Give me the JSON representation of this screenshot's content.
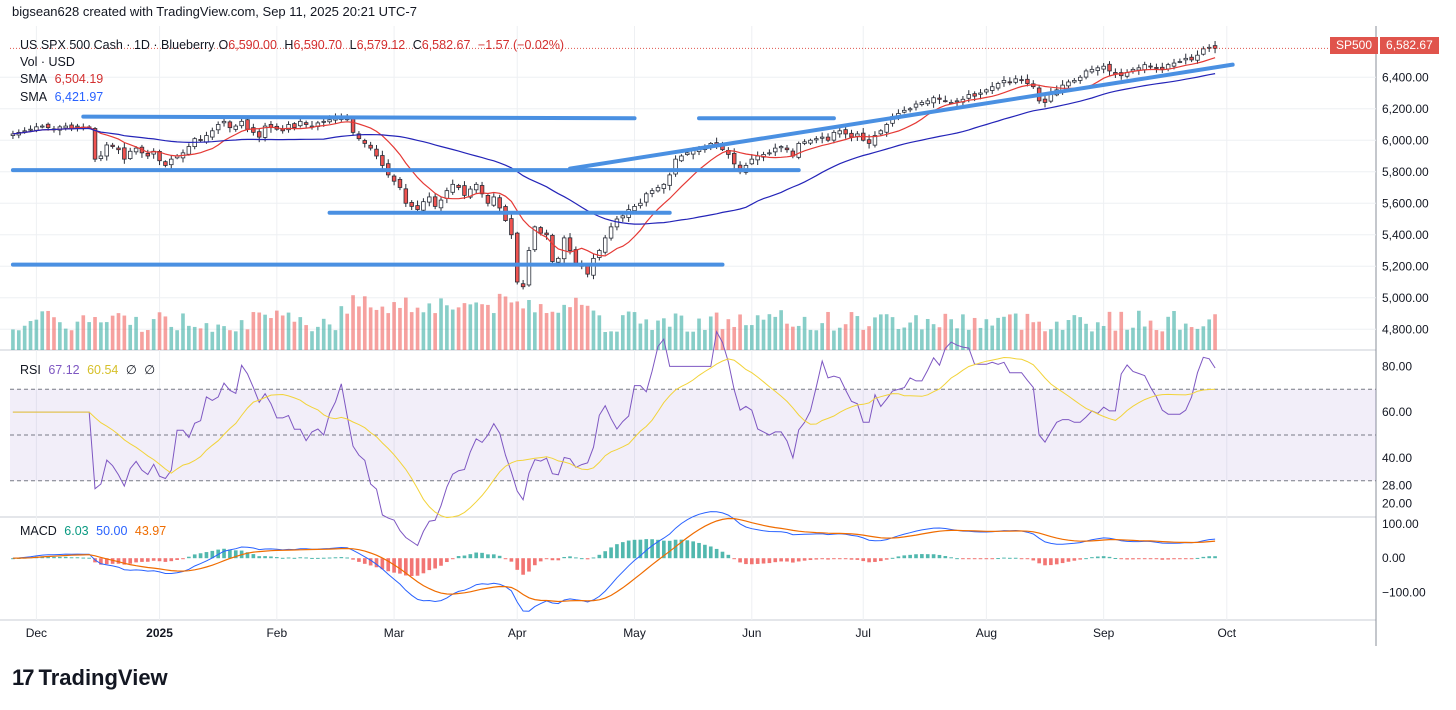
{
  "header": {
    "caption": "bigsean628 created with TradingView.com, Sep 11, 2025 20:21 UTC-7"
  },
  "symbol": {
    "name": "US SPX 500 Cash · 1D · Blueberry",
    "open_lbl": "O",
    "open": "6,590.00",
    "high_lbl": "H",
    "high": "6,590.70",
    "low_lbl": "L",
    "low": "6,579.12",
    "close_lbl": "C",
    "close": "6,582.67",
    "change": "−1.57 (−0.02%)",
    "vol_label": "Vol · USD",
    "sma1_label": "SMA",
    "sma1_value": "6,504.19",
    "sma2_label": "SMA",
    "sma2_value": "6,421.97"
  },
  "price_badge": {
    "ticker": "SP500",
    "value": "6,582.67"
  },
  "rsi": {
    "label": "RSI",
    "value": "67.12",
    "ma": "60.54",
    "extra1": "∅",
    "extra2": "∅"
  },
  "macd": {
    "label": "MACD",
    "v1": "6.03",
    "v2": "50.00",
    "v3": "43.97"
  },
  "brand": {
    "logo": "17",
    "name": "TradingView"
  },
  "colors": {
    "up": "#26a69a",
    "down": "#ef5350",
    "sma_fast": "#e53935",
    "sma_slow": "#2424b8",
    "trendline": "#4a90e2",
    "rsi": "#7e57c2",
    "rsi_ma": "#f2d33a",
    "macd": "#2962ff",
    "signal": "#ef6c00"
  },
  "chart_data": {
    "type": "candlestick",
    "main_axis": {
      "ticks": [
        "6,400.00",
        "6,200.00",
        "6,000.00",
        "5,800.00",
        "5,600.00",
        "5,400.00",
        "5,200.00",
        "5,000.00",
        "4,800.00"
      ],
      "tick_values": [
        6400,
        6200,
        6000,
        5800,
        5600,
        5400,
        5200,
        5000,
        4800
      ],
      "ylim": [
        4700,
        6700
      ]
    },
    "rsi_axis": {
      "ticks": [
        "80.00",
        "60.00",
        "40.00",
        "28.00",
        "20.00"
      ],
      "tick_values": [
        80,
        60,
        40,
        28,
        20
      ],
      "ylim": [
        15,
        85
      ],
      "band": [
        30,
        70
      ]
    },
    "macd_axis": {
      "ticks": [
        "100.00",
        "0.00",
        "−100.00"
      ],
      "tick_values": [
        100,
        0,
        -100
      ],
      "ylim": [
        -180,
        120
      ]
    },
    "x_labels": [
      "Dec",
      "2025",
      "Feb",
      "Mar",
      "Apr",
      "May",
      "Jun",
      "Jul",
      "Aug",
      "Sep",
      "Oct"
    ],
    "x_label_index": [
      4,
      25,
      45,
      65,
      86,
      106,
      126,
      145,
      166,
      186,
      207
    ],
    "closes": [
      6040,
      6050,
      6060,
      6070,
      6085,
      6090,
      6080,
      6070,
      6085,
      6090,
      6075,
      6090,
      6080,
      6085,
      5880,
      5900,
      5970,
      5960,
      5940,
      5880,
      5930,
      5950,
      5920,
      5900,
      5930,
      5870,
      5840,
      5880,
      5900,
      5920,
      5960,
      6010,
      6000,
      6030,
      6060,
      6100,
      6120,
      6080,
      6090,
      6120,
      6070,
      6050,
      6020,
      6090,
      6080,
      6070,
      6060,
      6100,
      6080,
      6120,
      6100,
      6090,
      6110,
      6120,
      6130,
      6140,
      6150,
      6130,
      6050,
      6010,
      5980,
      5950,
      5900,
      5840,
      5780,
      5740,
      5700,
      5600,
      5580,
      5560,
      5610,
      5640,
      5580,
      5620,
      5680,
      5720,
      5700,
      5650,
      5690,
      5720,
      5660,
      5600,
      5640,
      5570,
      5490,
      5400,
      5100,
      5070,
      5300,
      5450,
      5410,
      5400,
      5230,
      5250,
      5380,
      5300,
      5220,
      5200,
      5150,
      5250,
      5300,
      5380,
      5450,
      5500,
      5520,
      5560,
      5580,
      5600,
      5660,
      5680,
      5700,
      5720,
      5780,
      5880,
      5900,
      5920,
      5940,
      5950,
      5960,
      5980,
      5960,
      5940,
      5910,
      5850,
      5800,
      5840,
      5880,
      5900,
      5910,
      5920,
      5950,
      5960,
      5940,
      5900,
      5980,
      5990,
      6000,
      6010,
      6020,
      6000,
      6050,
      6060,
      6040,
      6020,
      6040,
      6000,
      5980,
      6030,
      6060,
      6100,
      6150,
      6170,
      6190,
      6200,
      6230,
      6240,
      6250,
      6270,
      6260,
      6250,
      6240,
      6250,
      6260,
      6290,
      6280,
      6300,
      6320,
      6340,
      6360,
      6380,
      6370,
      6390,
      6380,
      6360,
      6340,
      6250,
      6240,
      6300,
      6320,
      6350,
      6370,
      6380,
      6400,
      6440,
      6450,
      6460,
      6470,
      6440,
      6420,
      6410,
      6430,
      6450,
      6460,
      6480,
      6470,
      6460,
      6450,
      6480,
      6490,
      6500,
      6520,
      6510,
      6540,
      6580,
      6590,
      6583
    ],
    "trendlines": [
      {
        "name": "top-range",
        "from": [
          12,
          6150
        ],
        "to": [
          106,
          6140
        ]
      },
      {
        "name": "mid-range",
        "from": [
          0,
          5810
        ],
        "to": [
          134,
          5810
        ]
      },
      {
        "name": "lower-range",
        "from": [
          54,
          5540
        ],
        "to": [
          112,
          5540
        ]
      },
      {
        "name": "bottom-range",
        "from": [
          0,
          5210
        ],
        "to": [
          121,
          5210
        ]
      },
      {
        "name": "uptrend",
        "from": [
          95,
          5820
        ],
        "to": [
          208,
          6480
        ]
      },
      {
        "name": "top-right-range",
        "from": [
          117,
          6140
        ],
        "to": [
          140,
          6140
        ]
      }
    ]
  }
}
